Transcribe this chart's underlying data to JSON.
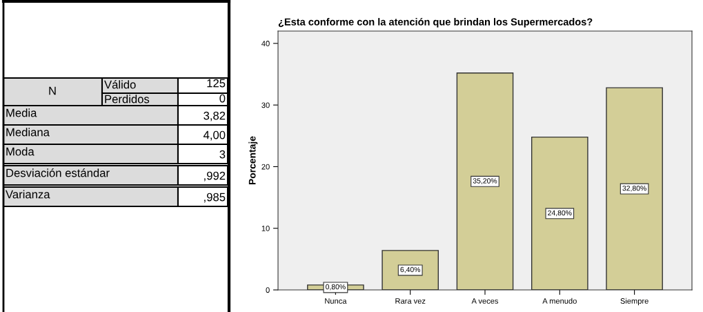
{
  "chart_data": [
    {
      "type": "other",
      "annotations": [
        "N",
        "Válido",
        "125",
        "Perdidos",
        "0",
        "Media",
        "3,82",
        "Mediana",
        "4,00",
        "Moda",
        "3",
        "Desviación estándar",
        ",992",
        "Varianza",
        ",985"
      ]
    },
    {
      "type": "bar",
      "title": "¿Esta conforme con la atención que brindan los Supermercados?",
      "ylabel": "Porcentaje",
      "categories": [
        "Nunca",
        "Rara vez",
        "A veces",
        "A menudo",
        "Siempre"
      ],
      "values": [
        0.8,
        6.4,
        35.2,
        24.8,
        32.8
      ],
      "color": "#d3ce97",
      "value_labels": [
        "0,80%",
        "6,40%",
        "35,20%",
        "24,80%",
        "32,80%"
      ],
      "ylim": [
        0,
        42
      ],
      "yticks": [
        0,
        10,
        20,
        30,
        40
      ],
      "grid": false,
      "legend": false
    }
  ]
}
